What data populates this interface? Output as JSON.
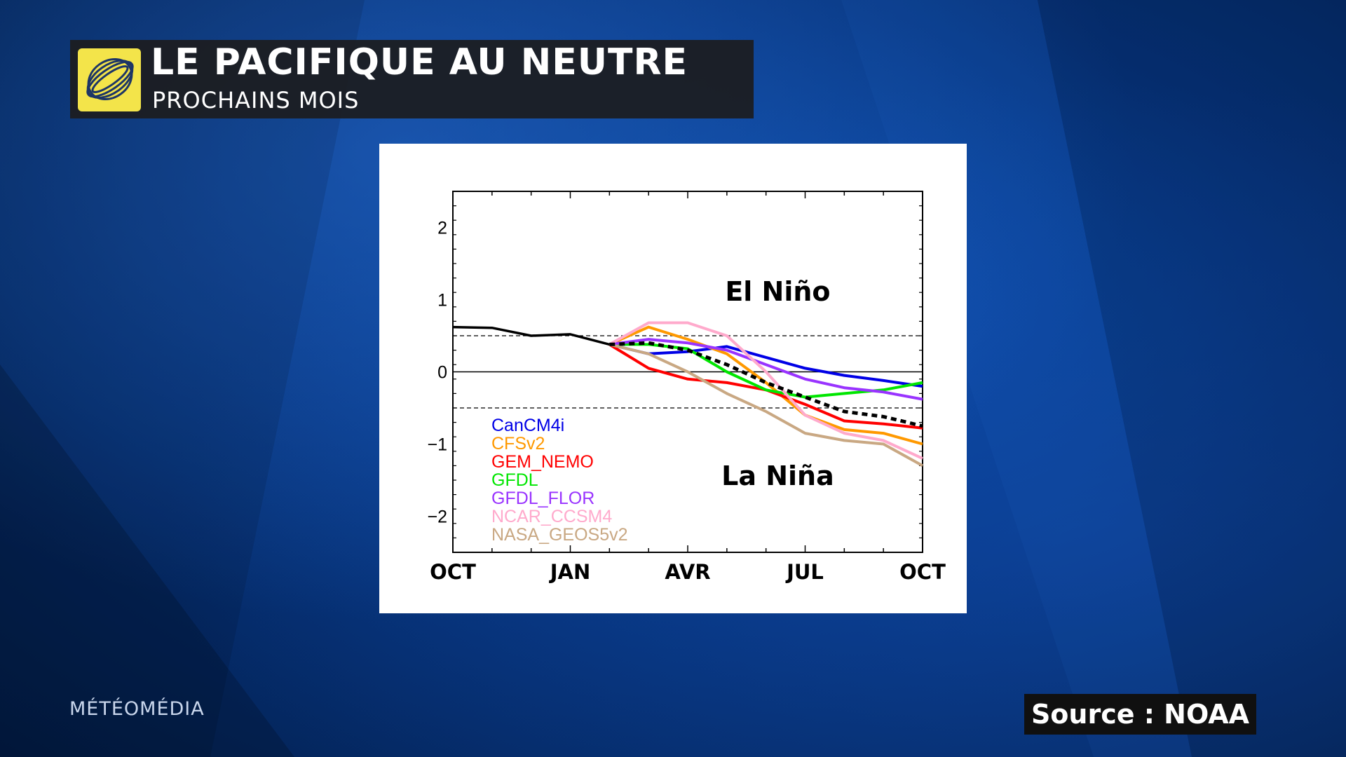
{
  "header": {
    "title": "LE PACIFIQUE AU NEUTRE",
    "subtitle": "PROCHAINS MOIS",
    "logo_icon": "globe-swirl-icon",
    "logo_color": "#f3e44a"
  },
  "brand": "MÉTÉOMÉDIA",
  "source": "Source : NOAA",
  "chart_data": {
    "type": "line",
    "title": "",
    "xlabel": "",
    "ylabel": "",
    "x_ticks": [
      "OCT",
      "JAN",
      "AVR",
      "JUL",
      "OCT"
    ],
    "ylim": [
      -2.5,
      2.5
    ],
    "y_ticks": [
      2,
      1,
      0,
      -1,
      -2
    ],
    "y_tick_labels": [
      "2",
      "1",
      "0",
      "−1",
      "−2"
    ],
    "zero_line": 0,
    "threshold_lines": [
      0.5,
      -0.5
    ],
    "region_labels": {
      "upper": "El Niño",
      "lower": "La Niña"
    },
    "legend_placement": "bottom-left",
    "observed": {
      "color": "#000000",
      "points": [
        [
          0,
          0.62
        ],
        [
          1,
          0.61
        ],
        [
          2,
          0.5
        ],
        [
          3,
          0.52
        ],
        [
          4,
          0.38
        ]
      ]
    },
    "mean": {
      "style": "dashed",
      "color": "#000000",
      "points": [
        [
          4,
          0.38
        ],
        [
          5,
          0.4
        ],
        [
          6,
          0.3
        ],
        [
          7,
          0.1
        ],
        [
          8,
          -0.15
        ],
        [
          9,
          -0.35
        ],
        [
          10,
          -0.55
        ],
        [
          11,
          -0.62
        ],
        [
          12,
          -0.75
        ]
      ]
    },
    "series": [
      {
        "name": "CanCM4i",
        "color": "#0000e6",
        "points": [
          [
            4,
            0.38
          ],
          [
            5,
            0.25
          ],
          [
            6,
            0.28
          ],
          [
            7,
            0.35
          ],
          [
            8,
            0.2
          ],
          [
            9,
            0.05
          ],
          [
            10,
            -0.05
          ],
          [
            11,
            -0.12
          ],
          [
            12,
            -0.2
          ]
        ]
      },
      {
        "name": "CFSv2",
        "color": "#ff9900",
        "points": [
          [
            4,
            0.38
          ],
          [
            5,
            0.62
          ],
          [
            6,
            0.45
          ],
          [
            7,
            0.25
          ],
          [
            8,
            -0.15
          ],
          [
            9,
            -0.6
          ],
          [
            10,
            -0.8
          ],
          [
            11,
            -0.85
          ],
          [
            12,
            -1.0
          ]
        ]
      },
      {
        "name": "GEM_NEMO",
        "color": "#ff0000",
        "points": [
          [
            4,
            0.38
          ],
          [
            5,
            0.05
          ],
          [
            6,
            -0.1
          ],
          [
            7,
            -0.15
          ],
          [
            8,
            -0.25
          ],
          [
            9,
            -0.45
          ],
          [
            10,
            -0.68
          ],
          [
            11,
            -0.72
          ],
          [
            12,
            -0.78
          ]
        ]
      },
      {
        "name": "GFDL",
        "color": "#00e600",
        "points": [
          [
            4,
            0.38
          ],
          [
            5,
            0.38
          ],
          [
            6,
            0.32
          ],
          [
            7,
            0.0
          ],
          [
            8,
            -0.25
          ],
          [
            9,
            -0.35
          ],
          [
            10,
            -0.3
          ],
          [
            11,
            -0.25
          ],
          [
            12,
            -0.15
          ]
        ]
      },
      {
        "name": "GFDL_FLOR",
        "color": "#9933ff",
        "points": [
          [
            4,
            0.38
          ],
          [
            5,
            0.45
          ],
          [
            6,
            0.4
          ],
          [
            7,
            0.3
          ],
          [
            8,
            0.1
          ],
          [
            9,
            -0.1
          ],
          [
            10,
            -0.22
          ],
          [
            11,
            -0.28
          ],
          [
            12,
            -0.38
          ]
        ]
      },
      {
        "name": "NCAR_CCSM4",
        "color": "#ffaacc",
        "points": [
          [
            4,
            0.38
          ],
          [
            5,
            0.68
          ],
          [
            6,
            0.68
          ],
          [
            7,
            0.5
          ],
          [
            8,
            0.0
          ],
          [
            9,
            -0.6
          ],
          [
            10,
            -0.85
          ],
          [
            11,
            -0.95
          ],
          [
            12,
            -1.2
          ]
        ]
      },
      {
        "name": "NASA_GEOS5v2",
        "color": "#c9a883",
        "points": [
          [
            4,
            0.38
          ],
          [
            5,
            0.25
          ],
          [
            6,
            0.0
          ],
          [
            7,
            -0.3
          ],
          [
            8,
            -0.55
          ],
          [
            9,
            -0.85
          ],
          [
            10,
            -0.95
          ],
          [
            11,
            -1.0
          ],
          [
            12,
            -1.3
          ]
        ]
      }
    ]
  }
}
